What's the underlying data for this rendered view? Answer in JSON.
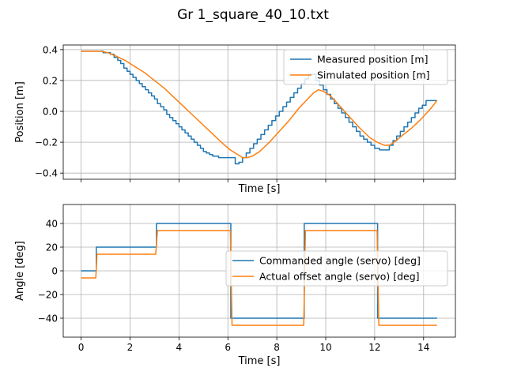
{
  "figure_title": "Gr 1_square_40_10.txt",
  "colors": {
    "blue": "#1f77b4",
    "orange": "#ff7f0e",
    "grid": "#b0b0b0"
  },
  "chart_data": [
    {
      "type": "line",
      "xlabel": "Time [s]",
      "ylabel": "Position [m]",
      "xlim": [
        -0.73,
        15.3
      ],
      "ylim": [
        -0.44,
        0.43
      ],
      "xticks": [
        0,
        2,
        4,
        6,
        8,
        10,
        12,
        14
      ],
      "show_xtick_labels": false,
      "yticks": [
        -0.4,
        -0.2,
        0.0,
        0.2,
        0.4
      ],
      "ytick_labels": [
        "−0.4",
        "−0.2",
        "0.0",
        "0.2",
        "0.4"
      ],
      "grid": true,
      "legend_position": "upper right",
      "series": [
        {
          "name": "Measured position [m]",
          "color": "#1f77b4",
          "step": true,
          "x": [
            0.0,
            0.9,
            1.2,
            1.35,
            1.5,
            1.62,
            1.75,
            1.88,
            2.0,
            2.12,
            2.25,
            2.38,
            2.5,
            2.63,
            2.75,
            2.88,
            3.0,
            3.12,
            3.25,
            3.38,
            3.5,
            3.62,
            3.75,
            3.88,
            4.0,
            4.12,
            4.25,
            4.38,
            4.5,
            4.62,
            4.75,
            4.88,
            5.0,
            5.12,
            5.25,
            5.38,
            5.5,
            5.62,
            5.75,
            6.0,
            6.3,
            6.45,
            6.6,
            6.75,
            6.9,
            7.05,
            7.2,
            7.35,
            7.5,
            7.65,
            7.8,
            7.95,
            8.1,
            8.25,
            8.4,
            8.55,
            8.7,
            8.85,
            9.0,
            9.15,
            9.3,
            9.45,
            9.6,
            9.75,
            9.9,
            10.05,
            10.2,
            10.35,
            10.5,
            10.65,
            10.8,
            10.95,
            11.1,
            11.25,
            11.4,
            11.55,
            11.7,
            11.85,
            12.0,
            12.2,
            12.45,
            12.6,
            12.75,
            12.9,
            13.05,
            13.2,
            13.35,
            13.5,
            13.65,
            13.8,
            13.95,
            14.1,
            14.25,
            14.4,
            14.55
          ],
          "y": [
            0.39,
            0.38,
            0.37,
            0.35,
            0.33,
            0.31,
            0.28,
            0.26,
            0.24,
            0.22,
            0.2,
            0.18,
            0.16,
            0.14,
            0.12,
            0.1,
            0.08,
            0.05,
            0.03,
            0.01,
            -0.02,
            -0.04,
            -0.06,
            -0.08,
            -0.1,
            -0.12,
            -0.14,
            -0.16,
            -0.18,
            -0.2,
            -0.22,
            -0.24,
            -0.26,
            -0.27,
            -0.28,
            -0.29,
            -0.29,
            -0.3,
            -0.3,
            -0.3,
            -0.34,
            -0.33,
            -0.3,
            -0.27,
            -0.24,
            -0.21,
            -0.18,
            -0.15,
            -0.12,
            -0.09,
            -0.06,
            -0.03,
            0.0,
            0.03,
            0.06,
            0.09,
            0.12,
            0.15,
            0.18,
            0.21,
            0.24,
            0.24,
            0.2,
            0.17,
            0.14,
            0.11,
            0.08,
            0.05,
            0.02,
            -0.01,
            -0.04,
            -0.07,
            -0.1,
            -0.13,
            -0.16,
            -0.18,
            -0.2,
            -0.22,
            -0.24,
            -0.25,
            -0.25,
            -0.22,
            -0.19,
            -0.16,
            -0.13,
            -0.1,
            -0.07,
            -0.04,
            -0.01,
            0.02,
            0.04,
            0.07,
            0.07,
            0.07,
            0.07
          ]
        },
        {
          "name": "Simulated position [m]",
          "color": "#ff7f0e",
          "step": false,
          "x": [
            0.0,
            0.8,
            1.1,
            1.4,
            1.8,
            2.2,
            2.6,
            3.0,
            3.4,
            3.8,
            4.2,
            4.6,
            5.0,
            5.4,
            5.8,
            6.1,
            6.4,
            6.6,
            6.8,
            7.0,
            7.3,
            7.7,
            8.1,
            8.5,
            8.9,
            9.2,
            9.5,
            9.7,
            9.9,
            10.2,
            10.6,
            11.0,
            11.4,
            11.8,
            12.1,
            12.4,
            12.6,
            12.8,
            13.1,
            13.5,
            13.9,
            14.3,
            14.55
          ],
          "y": [
            0.39,
            0.39,
            0.38,
            0.36,
            0.33,
            0.29,
            0.25,
            0.2,
            0.15,
            0.09,
            0.03,
            -0.03,
            -0.09,
            -0.15,
            -0.21,
            -0.25,
            -0.28,
            -0.3,
            -0.3,
            -0.29,
            -0.26,
            -0.2,
            -0.13,
            -0.06,
            0.02,
            0.07,
            0.12,
            0.14,
            0.13,
            0.1,
            0.03,
            -0.04,
            -0.11,
            -0.17,
            -0.2,
            -0.22,
            -0.22,
            -0.2,
            -0.16,
            -0.11,
            -0.05,
            0.02,
            0.07
          ]
        }
      ]
    },
    {
      "type": "line",
      "xlabel": "Time [s]",
      "ylabel": "Angle [deg]",
      "xlim": [
        -0.73,
        15.3
      ],
      "ylim": [
        -56,
        56
      ],
      "xticks": [
        0,
        2,
        4,
        6,
        8,
        10,
        12,
        14
      ],
      "xtick_labels": [
        "0",
        "2",
        "4",
        "6",
        "8",
        "10",
        "12",
        "14"
      ],
      "yticks": [
        -40,
        -20,
        0,
        20,
        40
      ],
      "ytick_labels": [
        "−40",
        "−20",
        "0",
        "20",
        "40"
      ],
      "grid": true,
      "legend_position": "center right",
      "series": [
        {
          "name": "Commanded angle (servo) [deg]",
          "color": "#1f77b4",
          "step": false,
          "x": [
            0.0,
            0.62,
            0.62,
            3.08,
            3.08,
            6.12,
            6.12,
            9.12,
            9.12,
            12.12,
            12.12,
            14.55
          ],
          "y": [
            0,
            0,
            20,
            20,
            40,
            40,
            -40,
            -40,
            40,
            40,
            -40,
            -40
          ]
        },
        {
          "name": "Actual offset angle (servo) [deg]",
          "color": "#ff7f0e",
          "step": false,
          "x": [
            0.0,
            0.6,
            0.65,
            3.05,
            3.12,
            6.1,
            6.17,
            9.1,
            9.17,
            12.1,
            12.17,
            14.55
          ],
          "y": [
            -6,
            -6,
            14,
            14,
            34,
            34,
            -46,
            -46,
            34,
            34,
            -46,
            -46
          ]
        }
      ]
    }
  ]
}
